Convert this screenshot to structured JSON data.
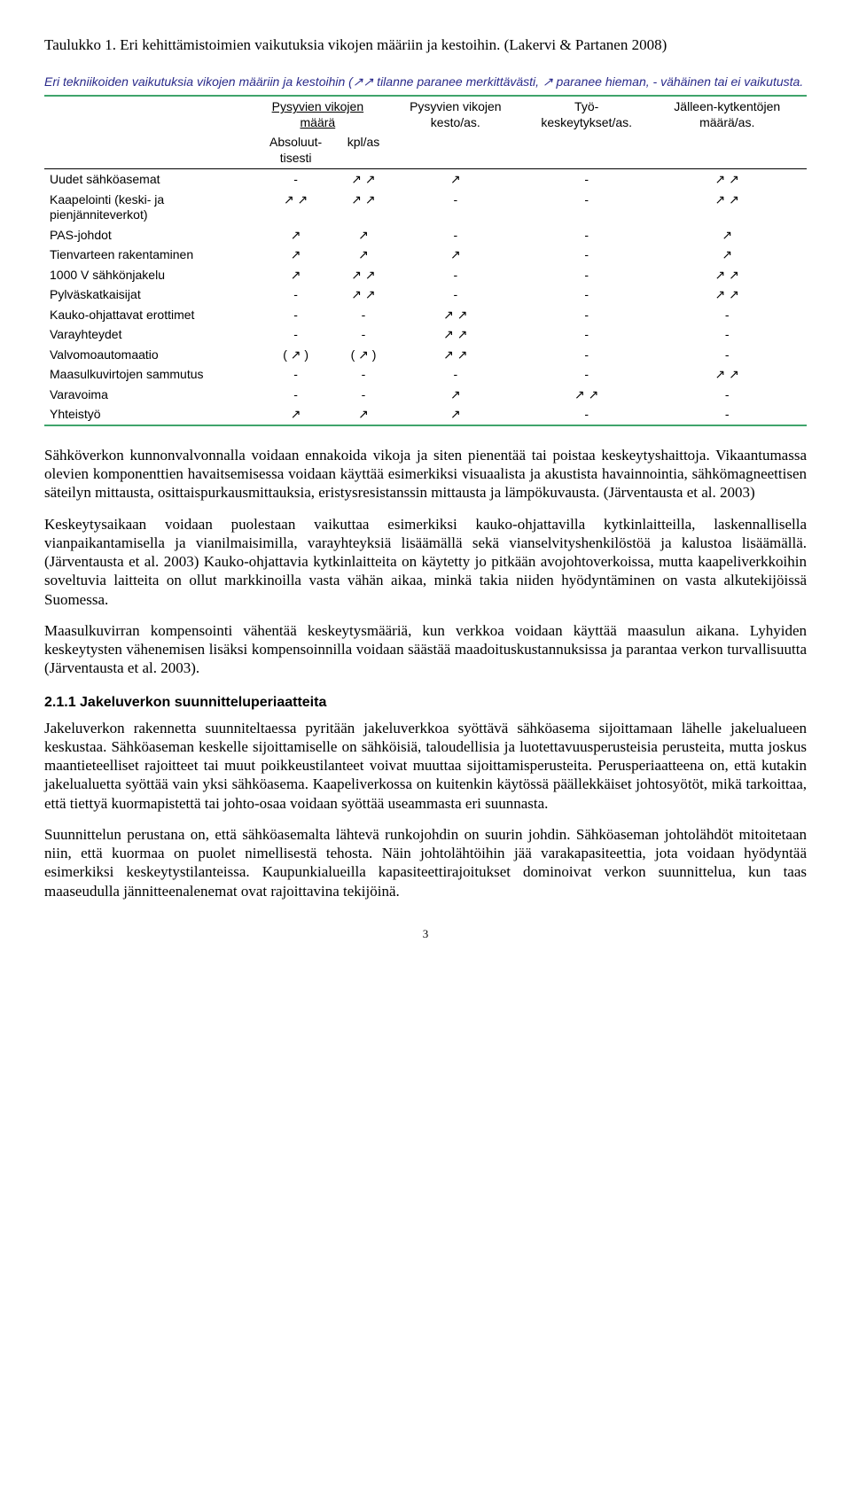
{
  "caption": "Taulukko 1. Eri kehittämistoimien vaikutuksia vikojen määriin ja kestoihin. (Lakervi & Partanen 2008)",
  "tabledesc": "Eri tekniikoiden vaikutuksia vikojen määriin ja kestoihin (↗↗ tilanne paranee merkittävästi, ↗ paranee hieman, - vähäinen tai ei vaikutusta.",
  "table": {
    "header_top": [
      "",
      "Pysyvien vikojen määrä",
      "",
      "Pysyvien vikojen kesto/as.",
      "Työ-keskeytykset/as.",
      "Jälleen-kytkentöjen määrä/as."
    ],
    "header_sub": [
      "",
      "Absoluut-tisesti",
      "kpl/as",
      "",
      "",
      ""
    ],
    "rows": [
      {
        "label": "Uudet sähköasemat",
        "c": [
          "-",
          "↗ ↗",
          "↗",
          "-",
          "↗ ↗"
        ]
      },
      {
        "label": "Kaapelointi (keski- ja pienjänniteverkot)",
        "c": [
          "↗ ↗",
          "↗ ↗",
          "-",
          "-",
          "↗ ↗"
        ]
      },
      {
        "label": "PAS-johdot",
        "c": [
          "↗",
          "↗",
          "-",
          "-",
          "↗"
        ]
      },
      {
        "label": "Tienvarteen rakentaminen",
        "c": [
          "↗",
          "↗",
          "↗",
          "-",
          "↗"
        ]
      },
      {
        "label": "1000 V sähkönjakelu",
        "c": [
          "↗",
          "↗ ↗",
          "-",
          "-",
          "↗ ↗"
        ]
      },
      {
        "label": "Pylväskatkaisijat",
        "c": [
          "-",
          "↗ ↗",
          "-",
          "-",
          "↗ ↗"
        ]
      },
      {
        "label": "Kauko-ohjattavat erottimet",
        "c": [
          "-",
          "-",
          "↗ ↗",
          "-",
          "-"
        ]
      },
      {
        "label": "Varayhteydet",
        "c": [
          "-",
          "-",
          "↗ ↗",
          "-",
          "-"
        ]
      },
      {
        "label": "Valvomoautomaatio",
        "c": [
          "( ↗ )",
          "( ↗ )",
          "↗ ↗",
          "-",
          "-"
        ]
      },
      {
        "label": "Maasulkuvirtojen sammutus",
        "c": [
          "-",
          "-",
          "-",
          "-",
          "↗ ↗"
        ]
      },
      {
        "label": "Varavoima",
        "c": [
          "-",
          "-",
          "↗",
          "↗ ↗",
          "-"
        ]
      },
      {
        "label": "Yhteistyö",
        "c": [
          "↗",
          "↗",
          "↗",
          "-",
          "-"
        ]
      }
    ]
  },
  "para1": "Sähköverkon kunnonvalvonnalla voidaan ennakoida vikoja ja siten pienentää tai poistaa keskeytyshaittoja. Vikaantumassa olevien komponenttien havaitsemisessa voidaan käyttää esimerkiksi visuaalista ja akustista havainnointia, sähkömagneettisen säteilyn mittausta, osittaispurkausmittauksia, eristysresistanssin mittausta ja lämpökuvausta. (Järventausta et al. 2003)",
  "para2": "Keskeytysaikaan voidaan puolestaan vaikuttaa esimerkiksi kauko-ohjattavilla kytkinlaitteilla, laskennallisella vianpaikantamisella ja vianilmaisimilla, varayhteyksiä lisäämällä sekä vianselvityshenkilöstöä ja kalustoa lisäämällä. (Järventausta et al. 2003) Kauko-ohjattavia kytkinlaitteita on käytetty jo pitkään avojohtoverkoissa, mutta kaapeliverkkoihin soveltuvia laitteita on ollut markkinoilla vasta vähän aikaa, minkä takia niiden hyödyntäminen on vasta alkutekijöissä Suomessa.",
  "para3": "Maasulkuvirran kompensointi vähentää keskeytysmääriä, kun verkkoa voidaan käyttää maasulun aikana. Lyhyiden keskeytysten vähenemisen lisäksi kompensoinnilla voidaan säästää maadoituskustannuksissa ja parantaa verkon turvallisuutta (Järventausta et al. 2003).",
  "section_heading": "2.1.1 Jakeluverkon suunnitteluperiaatteita",
  "para4": "Jakeluverkon rakennetta suunniteltaessa pyritään jakeluverkkoa syöttävä sähköasema sijoittamaan lähelle jakelualueen keskustaa. Sähköaseman keskelle sijoittamiselle on sähköisiä, taloudellisia ja luotettavuusperusteisia perusteita, mutta joskus maantieteelliset rajoitteet tai muut poikkeustilanteet voivat muuttaa sijoittamisperusteita. Perusperiaatteena on, että kutakin jakelualuetta syöttää vain yksi sähköasema. Kaapeliverkossa on kuitenkin käytössä päällekkäiset johtosyötöt, mikä tarkoittaa, että tiettyä kuormapistettä tai johto-osaa voidaan syöttää useammasta eri suunnasta.",
  "para5": "Suunnittelun perustana on, että sähköasemalta lähtevä runkojohdin on suurin johdin. Sähköaseman johtolähdöt mitoitetaan niin, että kuormaa on puolet nimellisestä tehosta. Näin johtolähtöihin jää varakapasiteettia, jota voidaan hyödyntää esimerkiksi keskeytystilanteissa. Kaupunkialueilla kapasiteettirajoitukset dominoivat verkon suunnittelua, kun taas maaseudulla jännitteenalenemat ovat rajoittavina tekijöinä.",
  "pagenum": "3"
}
